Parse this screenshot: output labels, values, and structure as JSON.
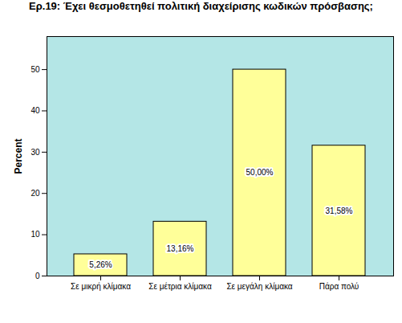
{
  "chart_data": {
    "type": "bar",
    "title": "Ερ.19: Έχει θεσμοθετηθεί πολιτική διαχείρισης κωδικών πρόσβασης;",
    "y_label": "Percent",
    "categories": [
      "Σε μικρή κλίμακα",
      "Σε μέτρια κλίμακα",
      "Σε μεγάλη κλίμακα",
      "Πάρα πολύ"
    ],
    "values": [
      5.26,
      13.16,
      50.0,
      31.58
    ],
    "value_labels": [
      "5,26%",
      "13,16%",
      "50,00%",
      "31,58%"
    ],
    "data_labels": true,
    "color": "#ffff99",
    "ylim": [
      0,
      58
    ],
    "yticks": [
      0,
      10,
      20,
      30,
      40,
      50
    ],
    "grid": false
  }
}
